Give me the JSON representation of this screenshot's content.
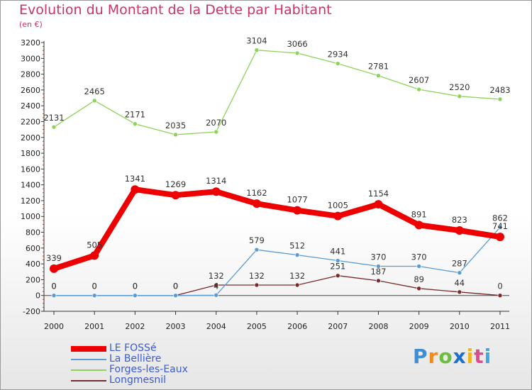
{
  "header": {
    "title": "Evolution du Montant de la Dette par Habitant",
    "subtitle": "(en €)"
  },
  "brand": {
    "name": "Proxiti",
    "letters": [
      "P",
      "r",
      "o",
      "x",
      "i",
      "t",
      "i"
    ],
    "colors": [
      "#3a8fd6",
      "#f08c1e",
      "#6abf3a",
      "#1e6fc8",
      "#f0b41e",
      "#e04b8c",
      "#3fa8e0"
    ]
  },
  "chart_data": {
    "type": "line",
    "title": "Evolution du Montant de la Dette par Habitant",
    "subtitle": "(en €)",
    "xlabel": "",
    "ylabel": "",
    "x": [
      "2000",
      "2001",
      "2002",
      "2003",
      "2004",
      "2005",
      "2006",
      "2007",
      "2008",
      "2009",
      "2010",
      "2011"
    ],
    "ylim": [
      -200,
      3200
    ],
    "yticks": [
      -200,
      0,
      200,
      400,
      600,
      800,
      1000,
      1200,
      1400,
      1600,
      1800,
      2000,
      2200,
      2400,
      2600,
      2800,
      3000,
      3200
    ],
    "grid": false,
    "legend_position": "bottom-left",
    "series": [
      {
        "name": "LE FOSSé",
        "color": "#ee0000",
        "values": [
          339,
          505,
          1341,
          1269,
          1314,
          1162,
          1077,
          1005,
          1154,
          891,
          823,
          741
        ],
        "labels": [
          "339",
          "505",
          "1341",
          "1269",
          "1314",
          "1162",
          "1077",
          "1005",
          "1154",
          "891",
          "823",
          "741"
        ]
      },
      {
        "name": "La Bellière",
        "color": "#5a9bd4",
        "values": [
          0,
          0,
          0,
          0,
          4,
          579,
          512,
          441,
          370,
          370,
          287,
          862
        ],
        "labels": [
          "0",
          "0",
          "0",
          "0",
          "4",
          "579",
          "512",
          "441",
          "370",
          "370",
          "287",
          "862"
        ]
      },
      {
        "name": "Forges-les-Eaux",
        "color": "#8dd35a",
        "values": [
          2131,
          2465,
          2171,
          2035,
          2070,
          3104,
          3066,
          2934,
          2781,
          2607,
          2520,
          2483
        ],
        "labels": [
          "2131",
          "2465",
          "2171",
          "2035",
          "2070",
          "3104",
          "3066",
          "2934",
          "2781",
          "2607",
          "2520",
          "2483"
        ]
      },
      {
        "name": "Longmesnil",
        "color": "#7a2a2a",
        "values": [
          0,
          0,
          0,
          0,
          132,
          132,
          132,
          251,
          187,
          89,
          44,
          0
        ],
        "labels": [
          "0",
          "0",
          "0",
          "0",
          "132",
          "132",
          "132",
          "251",
          "187",
          "89",
          "44",
          "0"
        ]
      }
    ]
  }
}
